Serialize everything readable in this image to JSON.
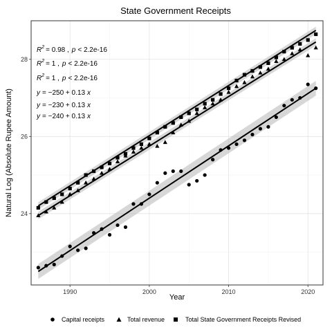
{
  "chart_data": {
    "type": "scatter",
    "title": "State Government Receipts",
    "xlabel": "Year",
    "ylabel": "Natural Log (Absolute Rupee Amount)",
    "xlim": [
      1985.1,
      2021.9
    ],
    "ylim": [
      22.15,
      29.0
    ],
    "x_ticks": [
      1990,
      2000,
      2010,
      2020
    ],
    "y_ticks": [
      24,
      26,
      28
    ],
    "grid": true,
    "legend_position": "bottom",
    "annotations": {
      "r2_lines": [
        {
          "r2_label": "R",
          "r2_exp": "2",
          "r2_value": "= 0.98 ,",
          "p_label": "p",
          "p_value": "< 2.2e-16"
        },
        {
          "r2_label": "R",
          "r2_exp": "2",
          "r2_value": "= 1 ,",
          "p_label": "p",
          "p_value": "< 2.2e-16"
        },
        {
          "r2_label": "R",
          "r2_exp": "2",
          "r2_value": "= 1 ,",
          "p_label": "p",
          "p_value": "< 2.2e-16"
        }
      ],
      "equations": [
        {
          "y": "y",
          "eq": "= −250 + 0.13",
          "x": "x"
        },
        {
          "y": "y",
          "eq": "= −230 + 0.13",
          "x": "x"
        },
        {
          "y": "y",
          "eq": "= −240 + 0.13",
          "x": "x"
        }
      ]
    },
    "x": [
      1986,
      1987,
      1988,
      1989,
      1990,
      1991,
      1992,
      1993,
      1994,
      1995,
      1996,
      1997,
      1998,
      1999,
      2000,
      2001,
      2002,
      2003,
      2004,
      2005,
      2006,
      2007,
      2008,
      2009,
      2010,
      2011,
      2012,
      2013,
      2014,
      2015,
      2016,
      2017,
      2018,
      2019,
      2020,
      2021
    ],
    "series": [
      {
        "name": "Capital receipts",
        "shape": "circle",
        "values": [
          22.6,
          22.65,
          22.68,
          22.9,
          23.15,
          23.05,
          23.1,
          23.5,
          23.6,
          23.45,
          23.7,
          23.65,
          24.25,
          24.25,
          24.5,
          24.8,
          25.05,
          25.1,
          25.1,
          24.75,
          24.85,
          25.0,
          25.4,
          25.65,
          25.7,
          25.8,
          25.9,
          26.05,
          26.2,
          26.25,
          26.5,
          26.8,
          26.95,
          27.0,
          27.35,
          27.25
        ],
        "fit": [
          22.55,
          22.69,
          22.82,
          22.96,
          23.1,
          23.24,
          23.37,
          23.51,
          23.65,
          23.79,
          23.92,
          24.06,
          24.2,
          24.34,
          24.48,
          24.61,
          24.75,
          24.89,
          25.03,
          25.16,
          25.3,
          25.44,
          25.58,
          25.71,
          25.85,
          25.99,
          26.13,
          26.26,
          26.4,
          26.54,
          26.68,
          26.81,
          26.95,
          27.09,
          27.23,
          27.3
        ]
      },
      {
        "name": "Total revenue",
        "shape": "triangle",
        "values": [
          23.95,
          24.05,
          24.15,
          24.3,
          24.5,
          24.6,
          24.8,
          24.9,
          25.05,
          25.15,
          25.35,
          25.5,
          25.6,
          25.7,
          25.8,
          25.75,
          25.85,
          26.1,
          26.3,
          26.4,
          26.6,
          26.75,
          26.85,
          26.95,
          27.15,
          27.3,
          27.4,
          27.55,
          27.65,
          27.75,
          27.95,
          28.0,
          28.15,
          28.25,
          28.1,
          28.3
        ]
      },
      {
        "name": "Total State Government Receipts Revised",
        "shape": "square",
        "values": [
          24.15,
          24.3,
          24.4,
          24.5,
          24.65,
          24.8,
          25.0,
          25.1,
          25.2,
          25.3,
          25.45,
          25.55,
          25.7,
          25.8,
          25.95,
          26.1,
          26.25,
          26.35,
          26.5,
          26.6,
          26.7,
          26.85,
          26.95,
          27.1,
          27.25,
          27.45,
          27.6,
          27.7,
          27.8,
          27.9,
          28.05,
          28.2,
          28.3,
          28.4,
          28.5,
          28.65
        ]
      }
    ],
    "fit_lines": [
      {
        "name": "Capital receipts",
        "x0": 1986,
        "y0": 22.5,
        "x1": 2021,
        "y1": 27.25
      },
      {
        "name": "Total revenue",
        "x0": 1986,
        "y0": 23.95,
        "x1": 2021,
        "y1": 28.45
      },
      {
        "name": "Total State Government Receipts Revised",
        "x0": 1986,
        "y0": 24.2,
        "x1": 2021,
        "y1": 28.75
      }
    ]
  }
}
